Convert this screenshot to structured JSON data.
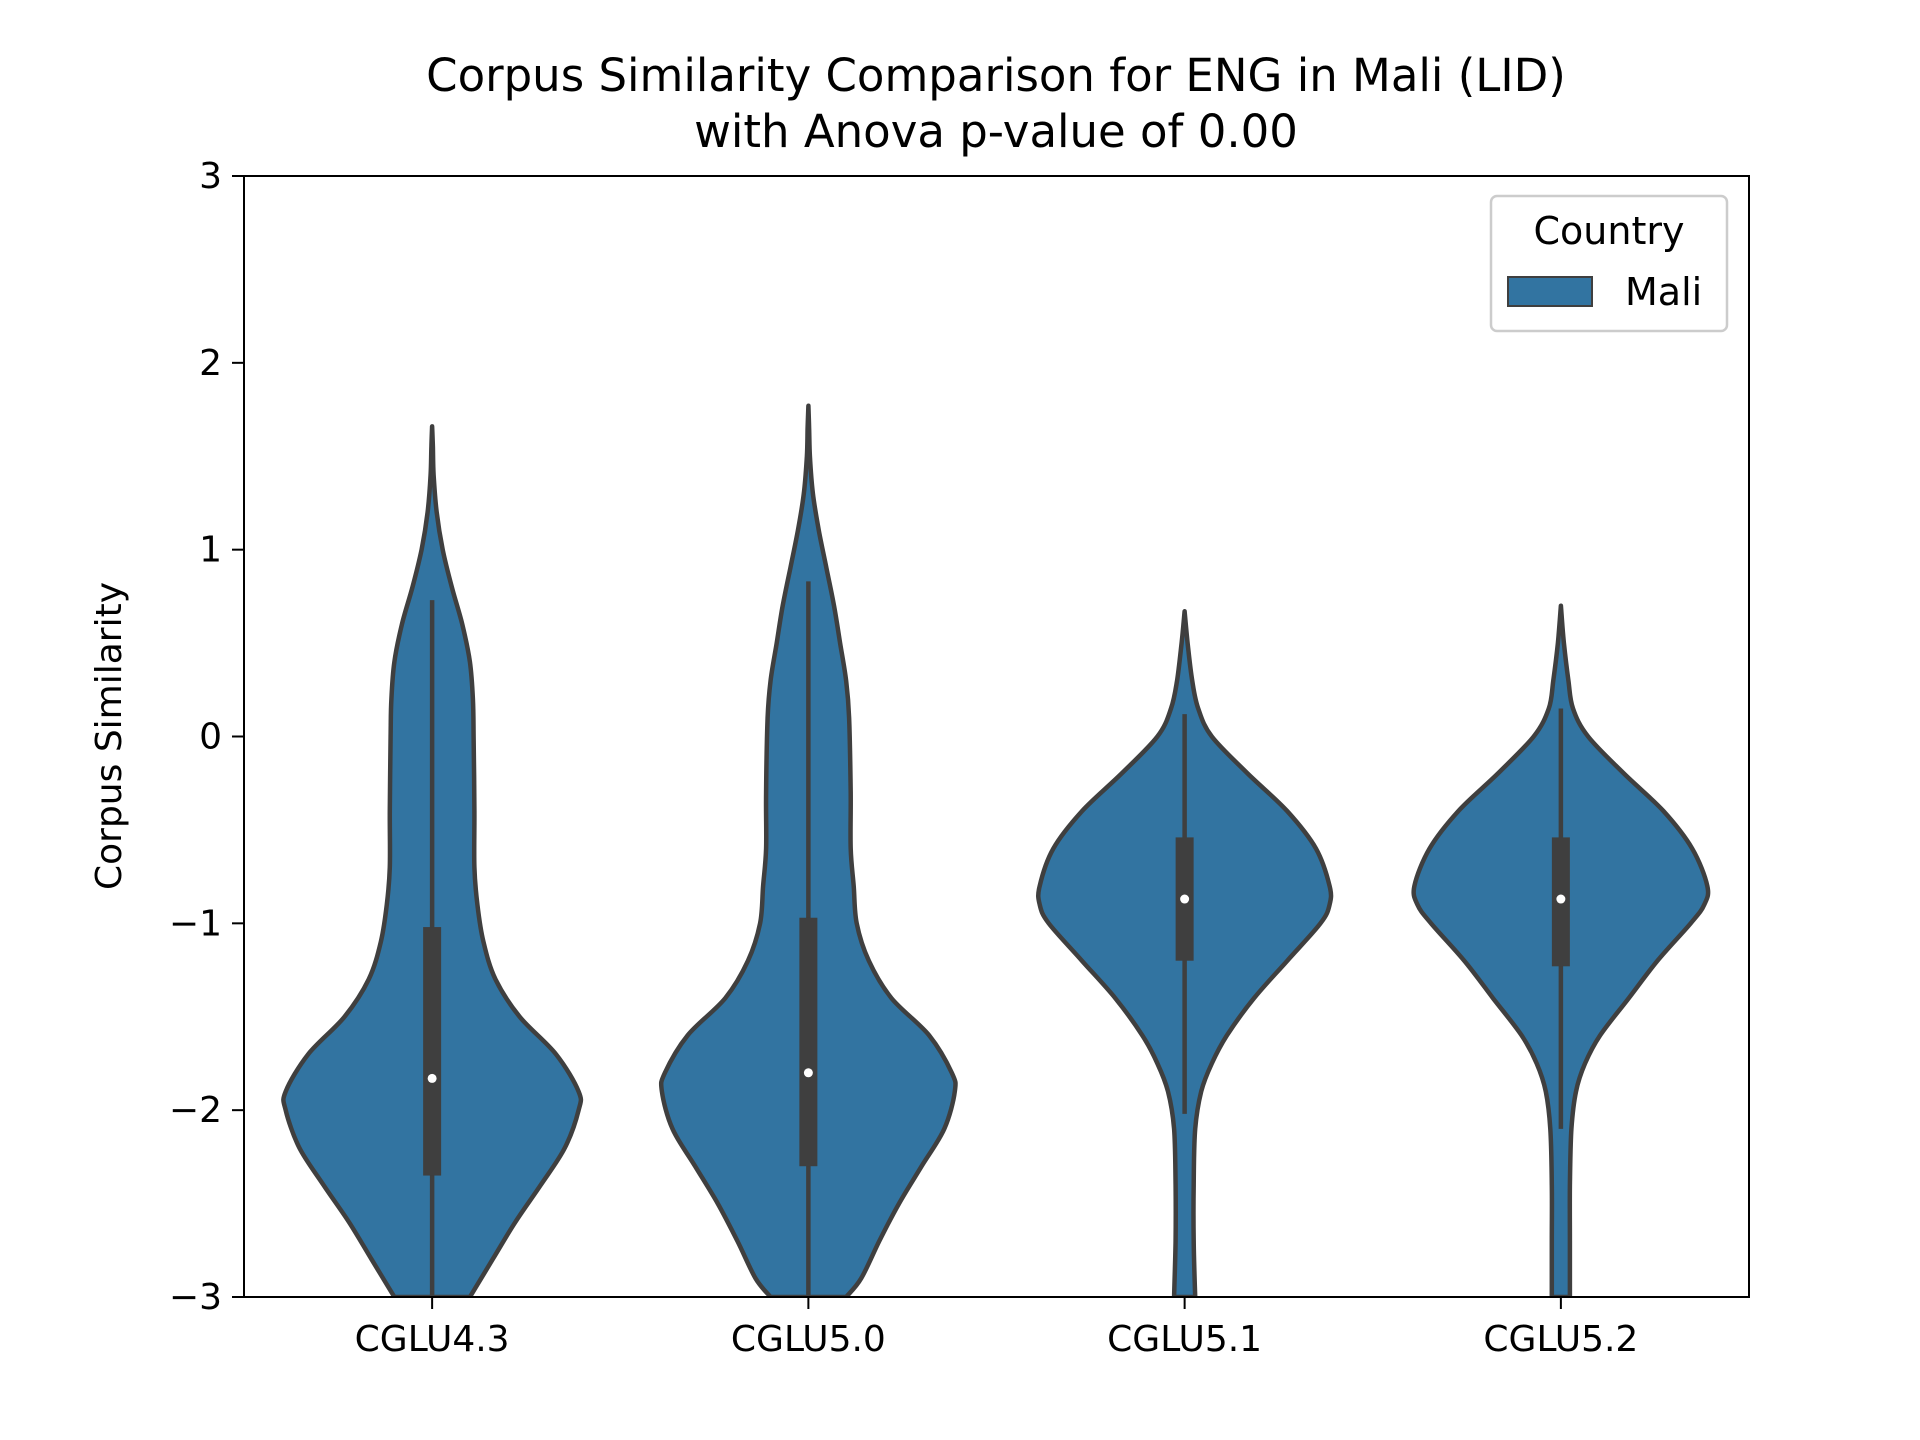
{
  "chart_data": {
    "type": "violin",
    "title_line1": "Corpus Similarity Comparison for ENG in Mali (LID)",
    "title_line2": "with Anova p-value of 0.00",
    "xlabel": "",
    "ylabel": "Corpus Similarity",
    "ylim": [
      -3,
      3
    ],
    "yticks": [
      3,
      2,
      1,
      0,
      -1,
      -2,
      -3
    ],
    "ytick_labels": [
      "3",
      "2",
      "1",
      "0",
      "−1",
      "−2",
      "−3"
    ],
    "categories": [
      "CGLU4.3",
      "CGLU5.0",
      "CGLU5.1",
      "CGLU5.2"
    ],
    "legend": {
      "title": "Country",
      "entries": [
        "Mali"
      ],
      "placement": "top-right"
    },
    "fill_color": "#3274a1",
    "edge_color": "#3f3f3f",
    "grid": false,
    "series": [
      {
        "name": "Mali",
        "violins": [
          {
            "category": "CGLU4.3",
            "median": -1.83,
            "q1": -2.35,
            "q3": -1.02,
            "whisker_low": -3.0,
            "whisker_high": 0.73,
            "profile": [
              [
                1.66,
                0.0
              ],
              [
                1.55,
                0.005
              ],
              [
                1.4,
                0.01
              ],
              [
                1.2,
                0.03
              ],
              [
                1.0,
                0.07
              ],
              [
                0.8,
                0.13
              ],
              [
                0.6,
                0.2
              ],
              [
                0.4,
                0.25
              ],
              [
                0.2,
                0.27
              ],
              [
                0.0,
                0.275
              ],
              [
                -0.4,
                0.28
              ],
              [
                -0.7,
                0.28
              ],
              [
                -0.9,
                0.3
              ],
              [
                -1.1,
                0.34
              ],
              [
                -1.3,
                0.42
              ],
              [
                -1.5,
                0.58
              ],
              [
                -1.7,
                0.82
              ],
              [
                -1.9,
                0.97
              ],
              [
                -2.0,
                0.97
              ],
              [
                -2.2,
                0.88
              ],
              [
                -2.4,
                0.72
              ],
              [
                -2.6,
                0.55
              ],
              [
                -2.8,
                0.4
              ],
              [
                -3.0,
                0.25
              ]
            ]
          },
          {
            "category": "CGLU5.0",
            "median": -1.8,
            "q1": -2.3,
            "q3": -0.97,
            "whisker_low": -3.0,
            "whisker_high": 0.83,
            "profile": [
              [
                1.77,
                0.0
              ],
              [
                1.65,
                0.005
              ],
              [
                1.5,
                0.01
              ],
              [
                1.3,
                0.03
              ],
              [
                1.1,
                0.07
              ],
              [
                0.9,
                0.12
              ],
              [
                0.7,
                0.17
              ],
              [
                0.5,
                0.21
              ],
              [
                0.3,
                0.25
              ],
              [
                0.1,
                0.27
              ],
              [
                -0.3,
                0.28
              ],
              [
                -0.6,
                0.28
              ],
              [
                -0.8,
                0.3
              ],
              [
                -1.0,
                0.32
              ],
              [
                -1.2,
                0.4
              ],
              [
                -1.4,
                0.55
              ],
              [
                -1.6,
                0.8
              ],
              [
                -1.8,
                0.95
              ],
              [
                -1.9,
                0.97
              ],
              [
                -2.1,
                0.9
              ],
              [
                -2.3,
                0.75
              ],
              [
                -2.5,
                0.6
              ],
              [
                -2.7,
                0.47
              ],
              [
                -2.9,
                0.35
              ],
              [
                -3.0,
                0.25
              ]
            ]
          },
          {
            "category": "CGLU5.1",
            "median": -0.87,
            "q1": -1.2,
            "q3": -0.54,
            "whisker_low": -2.02,
            "whisker_high": 0.12,
            "profile": [
              [
                0.67,
                0.0
              ],
              [
                0.5,
                0.02
              ],
              [
                0.3,
                0.05
              ],
              [
                0.15,
                0.09
              ],
              [
                0.0,
                0.18
              ],
              [
                -0.2,
                0.42
              ],
              [
                -0.4,
                0.68
              ],
              [
                -0.6,
                0.87
              ],
              [
                -0.8,
                0.96
              ],
              [
                -0.9,
                0.96
              ],
              [
                -1.0,
                0.9
              ],
              [
                -1.2,
                0.68
              ],
              [
                -1.4,
                0.46
              ],
              [
                -1.6,
                0.28
              ],
              [
                -1.75,
                0.18
              ],
              [
                -1.9,
                0.11
              ],
              [
                -2.1,
                0.07
              ],
              [
                -2.4,
                0.06
              ],
              [
                -2.7,
                0.06
              ],
              [
                -3.0,
                0.07
              ]
            ]
          },
          {
            "category": "CGLU5.2",
            "median": -0.87,
            "q1": -1.23,
            "q3": -0.54,
            "whisker_low": -2.1,
            "whisker_high": 0.15,
            "profile": [
              [
                0.7,
                0.0
              ],
              [
                0.5,
                0.02
              ],
              [
                0.3,
                0.05
              ],
              [
                0.15,
                0.08
              ],
              [
                0.0,
                0.18
              ],
              [
                -0.2,
                0.42
              ],
              [
                -0.4,
                0.68
              ],
              [
                -0.6,
                0.87
              ],
              [
                -0.8,
                0.97
              ],
              [
                -0.9,
                0.95
              ],
              [
                -1.0,
                0.86
              ],
              [
                -1.2,
                0.64
              ],
              [
                -1.4,
                0.45
              ],
              [
                -1.6,
                0.26
              ],
              [
                -1.75,
                0.16
              ],
              [
                -1.9,
                0.1
              ],
              [
                -2.1,
                0.07
              ],
              [
                -2.4,
                0.06
              ],
              [
                -2.7,
                0.06
              ],
              [
                -3.0,
                0.06
              ]
            ]
          }
        ]
      }
    ]
  }
}
